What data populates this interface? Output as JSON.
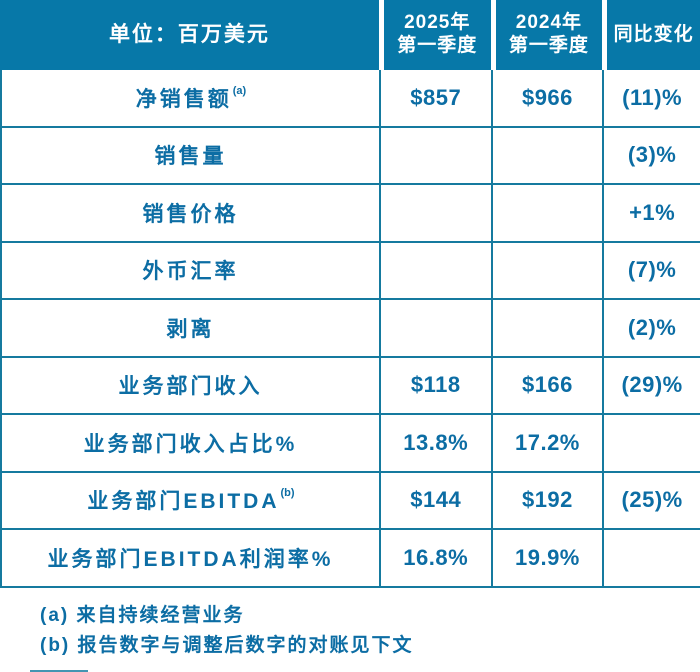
{
  "colors": {
    "header_bg": "#0778a8",
    "grid_line": "#157a9f",
    "text": "#0c6da4"
  },
  "chart_data": {
    "type": "table",
    "title": "单位：百万美元",
    "header": {
      "unit": "单位：百万美元",
      "c2025_l1": "2025年",
      "c2025_l2": "第一季度",
      "c2024_l1": "2024年",
      "c2024_l2": "第一季度",
      "change": "同比变化"
    },
    "rows": [
      {
        "label": "净销售额",
        "sup": "(a)",
        "y2025": "$857",
        "y2024": "$966",
        "change": "(11)%"
      },
      {
        "label": "销售量",
        "sup": "",
        "y2025": "",
        "y2024": "",
        "change": "(3)%"
      },
      {
        "label": "销售价格",
        "sup": "",
        "y2025": "",
        "y2024": "",
        "change": "+1%"
      },
      {
        "label": "外币汇率",
        "sup": "",
        "y2025": "",
        "y2024": "",
        "change": "(7)%"
      },
      {
        "label": "剥离",
        "sup": "",
        "y2025": "",
        "y2024": "",
        "change": "(2)%"
      },
      {
        "label": "业务部门收入",
        "sup": "",
        "y2025": "$118",
        "y2024": "$166",
        "change": "(29)%"
      },
      {
        "label": "业务部门收入占比%",
        "sup": "",
        "y2025": "13.8%",
        "y2024": "17.2%",
        "change": ""
      },
      {
        "label": "业务部门EBITDA",
        "sup": "(b)",
        "y2025": "$144",
        "y2024": "$192",
        "change": "(25)%"
      },
      {
        "label": "业务部门EBITDA利润率%",
        "sup": "",
        "y2025": "16.8%",
        "y2024": "19.9%",
        "change": ""
      }
    ],
    "footnotes": [
      "(a) 来自持续经营业务",
      "(b) 报告数字与调整后数字的对账见下文"
    ]
  }
}
